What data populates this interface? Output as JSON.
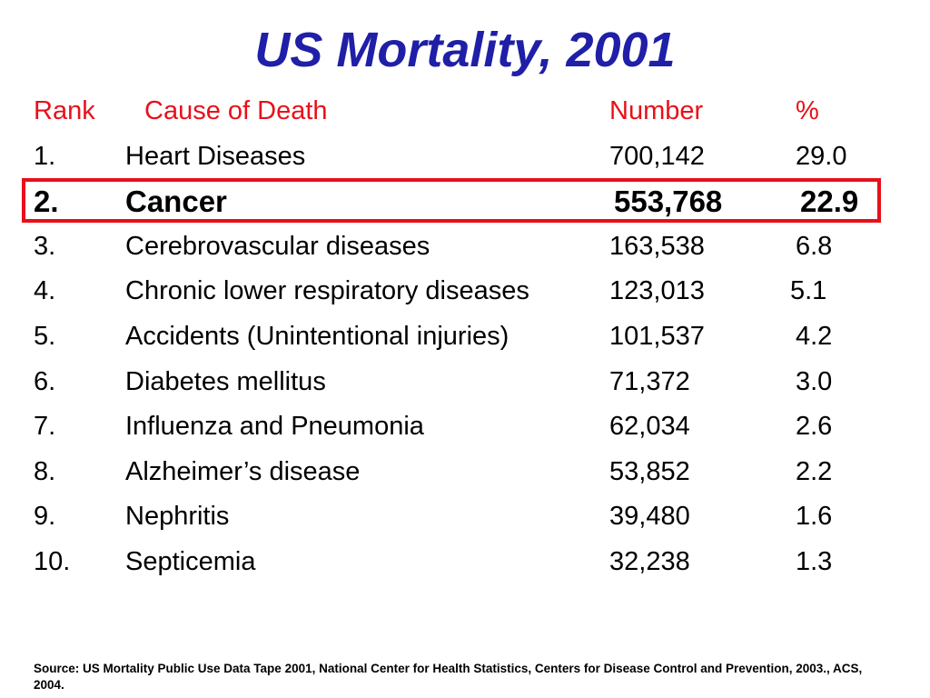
{
  "title": "US Mortality, 2001",
  "headers": {
    "rank": "Rank",
    "cause": "Cause of Death",
    "number": "Number",
    "pct": "%"
  },
  "rows": [
    {
      "rank": "1.",
      "cause": "Heart Diseases",
      "number": "700,142",
      "pct": "29.0"
    },
    {
      "rank": "2.",
      "cause": "Cancer",
      "number": "553,768",
      "pct": "22.9"
    },
    {
      "rank": "3.",
      "cause": "Cerebrovascular diseases",
      "number": "163,538",
      "pct": "6.8"
    },
    {
      "rank": "4.",
      "cause": "Chronic lower respiratory diseases",
      "number": "123,013",
      "pct": "5.1"
    },
    {
      "rank": "5.",
      "cause": "Accidents (Unintentional injuries)",
      "number": "101,537",
      "pct": "4.2"
    },
    {
      "rank": "6.",
      "cause": "Diabetes mellitus",
      "number": "71,372",
      "pct": "3.0"
    },
    {
      "rank": "7.",
      "cause": "Influenza and Pneumonia",
      "number": "62,034",
      "pct": "2.6"
    },
    {
      "rank": "8.",
      "cause": "Alzheimer’s disease",
      "number": "53,852",
      "pct": "2.2"
    },
    {
      "rank": "9.",
      "cause": "Nephritis",
      "number": "39,480",
      "pct": "1.6"
    },
    {
      "rank": "10.",
      "cause": "Septicemia",
      "number": "32,238",
      "pct": "1.3"
    }
  ],
  "highlighted_rank": "2.",
  "source": "Source: US Mortality Public Use Data Tape 2001, National Center for Health Statistics, Centers for Disease Control and Prevention, 2003., ACS, 2004.",
  "colors": {
    "title": "#1f1fa8",
    "header": "#e8101a",
    "highlight_border": "#e8101a"
  }
}
